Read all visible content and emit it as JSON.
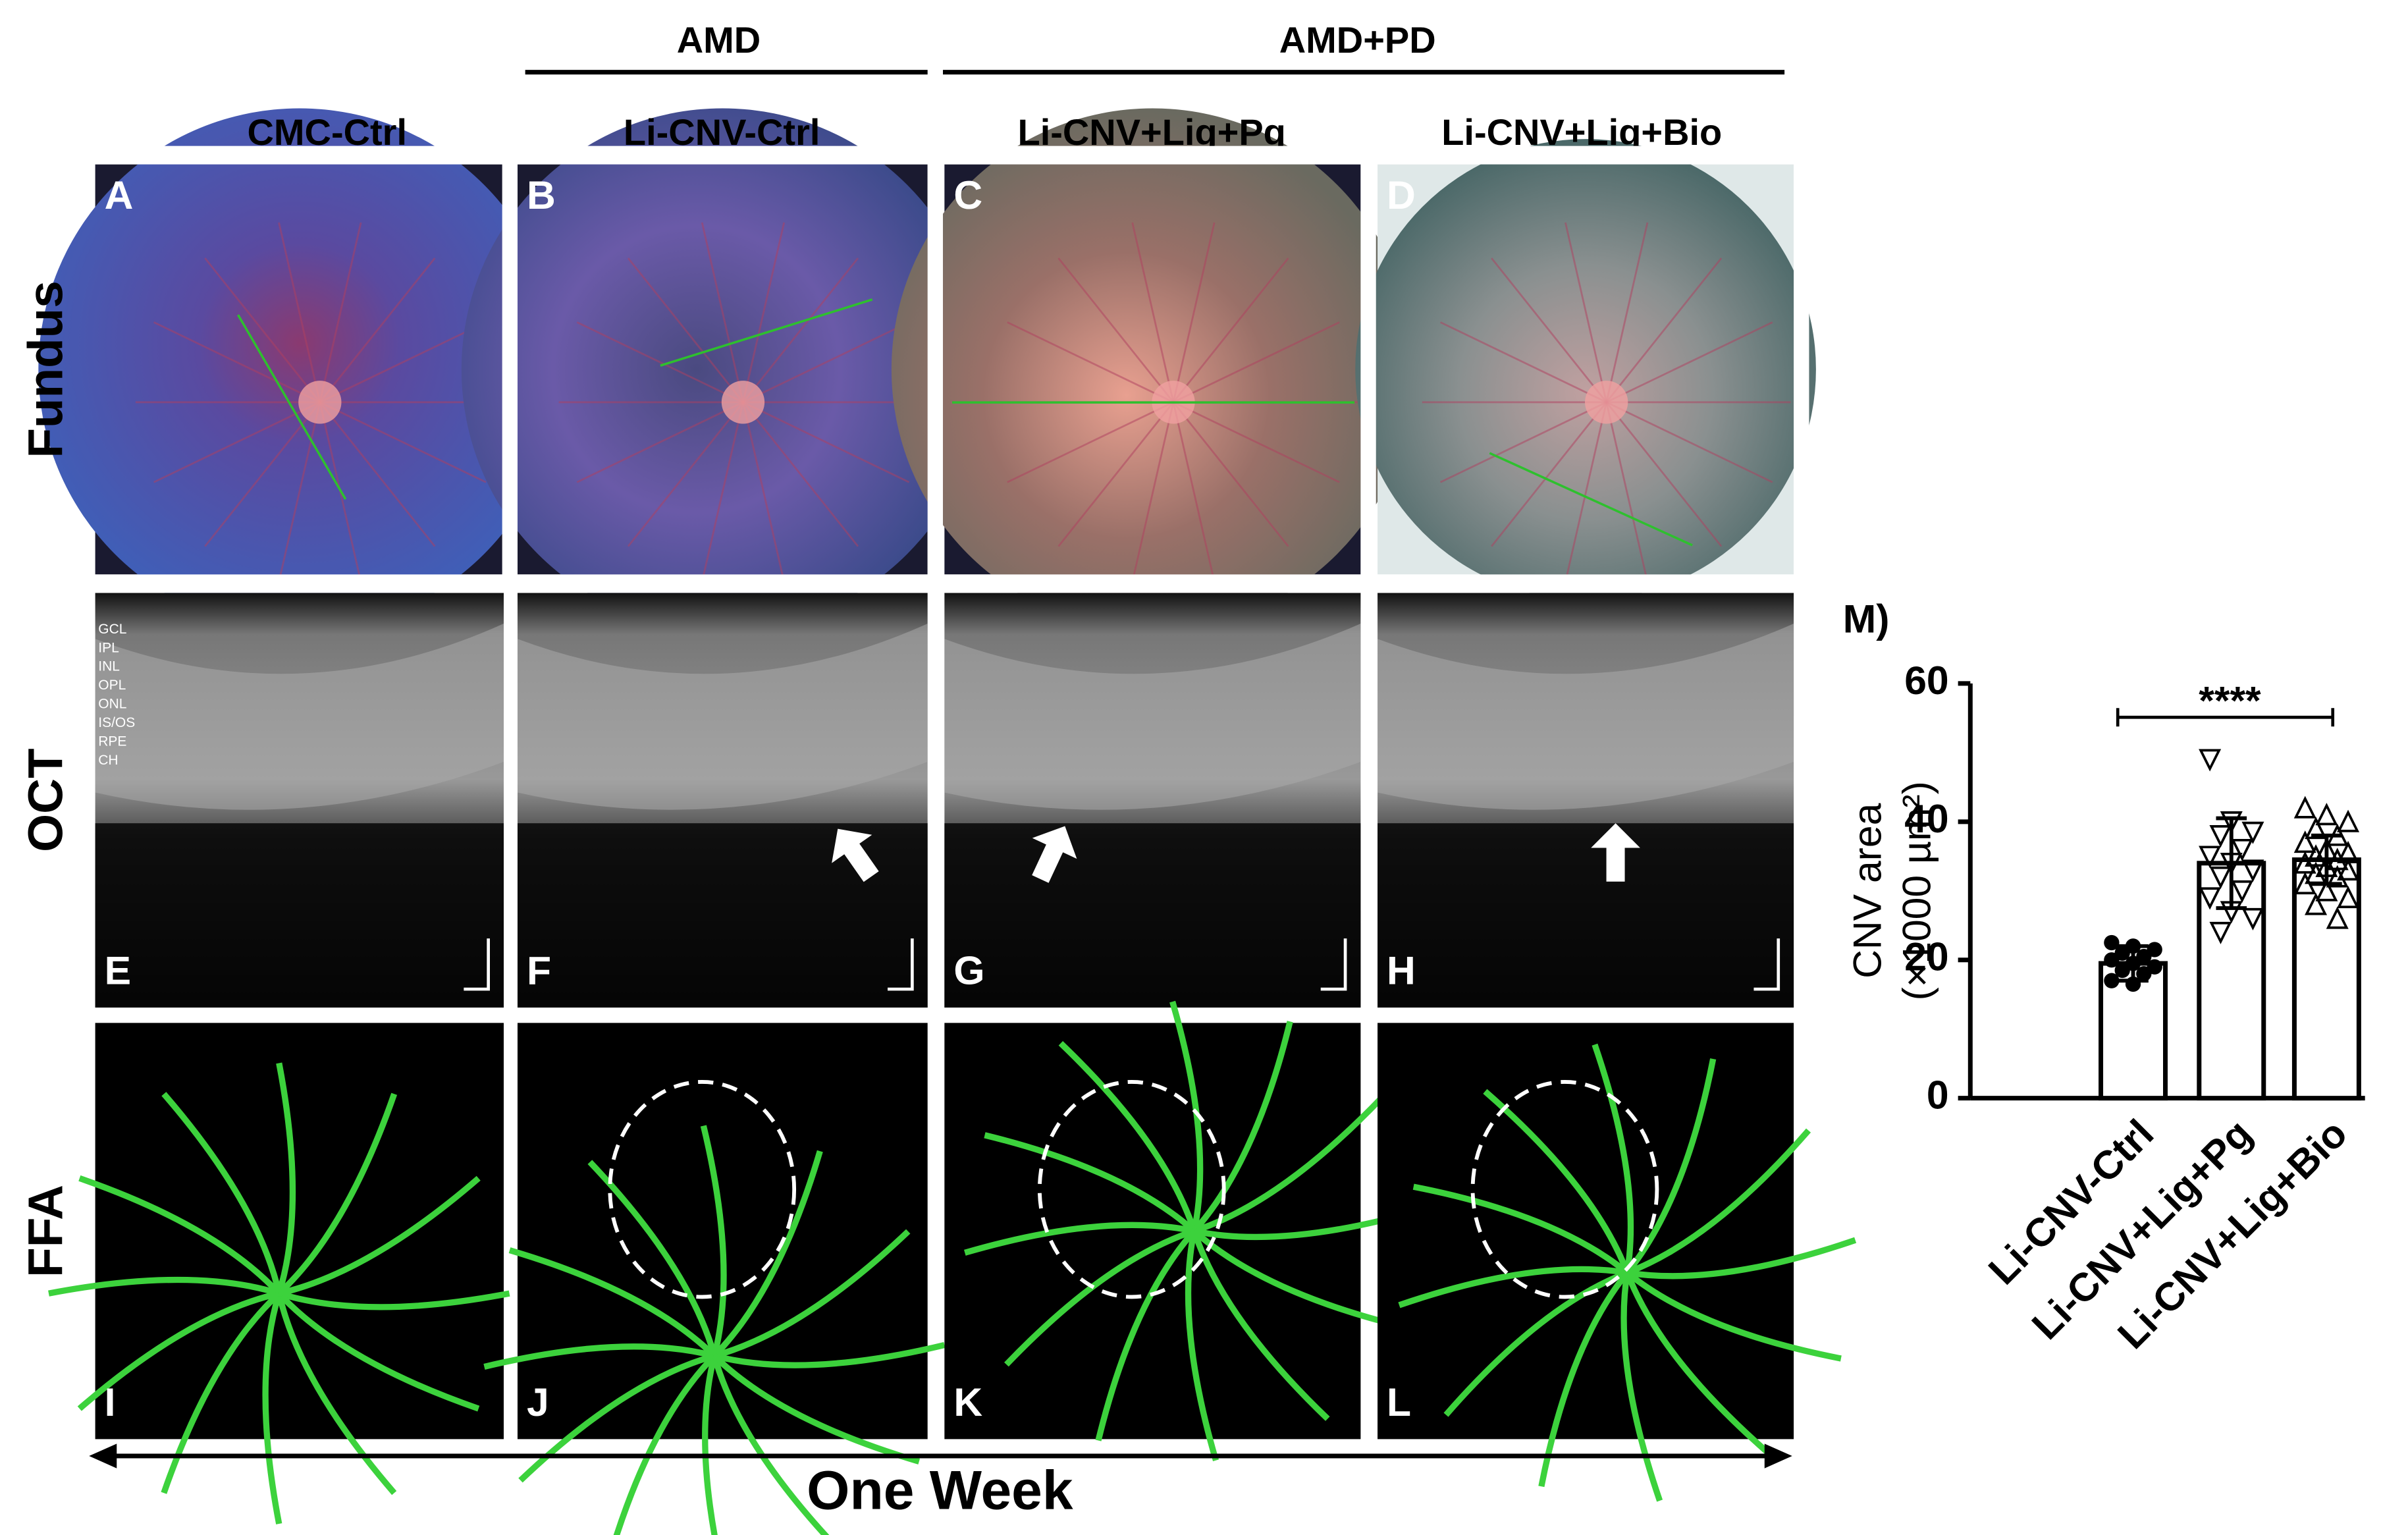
{
  "figure": {
    "groups": [
      "AMD",
      "AMD+PD"
    ],
    "columns": [
      "CMC-Ctrl",
      "Li-CNV-Ctrl",
      "Li-CNV+Lig+Pg",
      "Li-CNV+Lig+Bio"
    ],
    "rows": [
      "Fundus",
      "OCT",
      "FFA"
    ],
    "panels": [
      "A",
      "B",
      "C",
      "D",
      "E",
      "F",
      "G",
      "H",
      "I",
      "J",
      "K",
      "L"
    ],
    "oct_layers": [
      "GCL",
      "IPL",
      "INL",
      "OPL",
      "ONL",
      "IS/OS",
      "RPE",
      "CH"
    ],
    "time_label": "One Week"
  },
  "chart_data": {
    "type": "bar",
    "title": "M)",
    "ylabel": [
      "CNV area",
      "(×1000 µm²)"
    ],
    "categories": [
      "Li-CNV-Ctrl",
      "Li-CNV+Lig+Pg",
      "Li-CNV+Lig+Bio"
    ],
    "values": [
      19.5,
      34,
      34.5
    ],
    "errors": [
      2.5,
      6.5,
      3.5
    ],
    "points": [
      [
        22.5,
        22,
        21.5,
        21,
        20.5,
        20,
        19.5,
        19,
        18.5,
        18,
        17,
        16.5
      ],
      [
        49,
        40,
        38.5,
        38,
        36,
        35,
        34,
        33,
        32,
        30,
        29,
        27,
        26,
        24
      ],
      [
        42,
        41,
        40,
        39,
        38,
        37,
        36,
        35.5,
        35,
        34.5,
        34,
        33.5,
        33,
        32.5,
        32,
        31,
        30,
        29,
        28,
        26
      ]
    ],
    "markers": [
      "circle",
      "triangle-down",
      "triangle-up"
    ],
    "color": "#ffffff",
    "annotation": "****",
    "ylim": [
      0,
      60
    ],
    "yticks": [
      0,
      20,
      40,
      60
    ]
  }
}
